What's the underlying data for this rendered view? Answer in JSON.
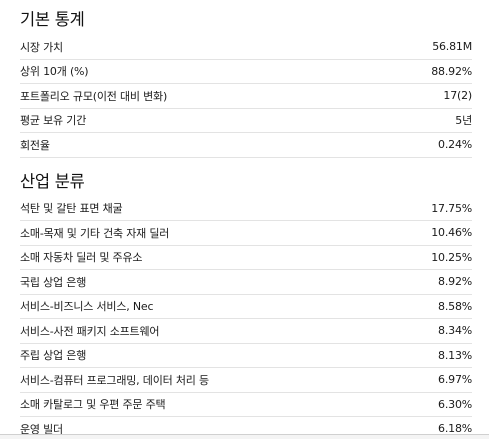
{
  "basic_stats": {
    "title": "기본 통계",
    "rows": [
      {
        "label": "시장 가치",
        "value": "56.81M"
      },
      {
        "label": "상위 10개 (%)",
        "value": "88.92%"
      },
      {
        "label": "포트폴리오 규모(이전 대비 변화)",
        "value": "17(2)"
      },
      {
        "label": "평균 보유 기간",
        "value": "5년"
      },
      {
        "label": "회전율",
        "value": "0.24%"
      }
    ]
  },
  "industry": {
    "title": "산업 분류",
    "rows": [
      {
        "label": "석탄 및 갈탄 표면 채굴",
        "value": "17.75%"
      },
      {
        "label": "소매-목재 및 기타 건축 자재 딜러",
        "value": "10.46%"
      },
      {
        "label": "소매 자동차 딜러 및 주유소",
        "value": "10.25%"
      },
      {
        "label": "국립 상업 은행",
        "value": "8.92%"
      },
      {
        "label": "서비스-비즈니스 서비스, Nec",
        "value": "8.58%"
      },
      {
        "label": "서비스-사전 패키지 소프트웨어",
        "value": "8.34%"
      },
      {
        "label": "주립 상업 은행",
        "value": "8.13%"
      },
      {
        "label": "서비스-컴퓨터 프로그래밍, 데이터 처리 등",
        "value": "6.97%"
      },
      {
        "label": "소매 카탈로그 및 우편 주문 주택",
        "value": "6.30%"
      },
      {
        "label": "운영 빌더",
        "value": "6.18%"
      }
    ]
  }
}
